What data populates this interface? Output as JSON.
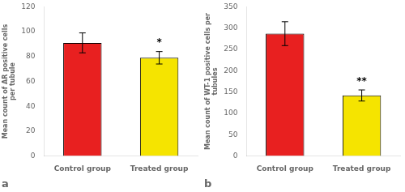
{
  "chart_data": [
    {
      "type": "bar",
      "title": "a",
      "categories": [
        "Control group",
        "Treated group"
      ],
      "values": [
        91,
        79
      ],
      "errors": [
        8,
        5
      ],
      "significance": [
        null,
        "*"
      ],
      "colors": [
        "#e82020",
        "#f5e400"
      ],
      "ylabel": "Mean count of AR positive cells\nper tubule",
      "ylim": [
        0,
        120
      ],
      "yticks": [
        0,
        20,
        40,
        60,
        80,
        100,
        120
      ],
      "grid": false
    },
    {
      "type": "bar",
      "title": "b",
      "categories": [
        "Control group",
        "Treated group"
      ],
      "values": [
        287,
        142
      ],
      "errors": [
        28,
        13
      ],
      "significance": [
        null,
        "**"
      ],
      "colors": [
        "#e82020",
        "#f5e400"
      ],
      "ylabel": "Mean count of WT-1 positive cells per\ntubules",
      "ylim": [
        0,
        350
      ],
      "yticks": [
        0,
        50,
        100,
        150,
        200,
        250,
        300,
        350
      ],
      "grid": false
    }
  ]
}
